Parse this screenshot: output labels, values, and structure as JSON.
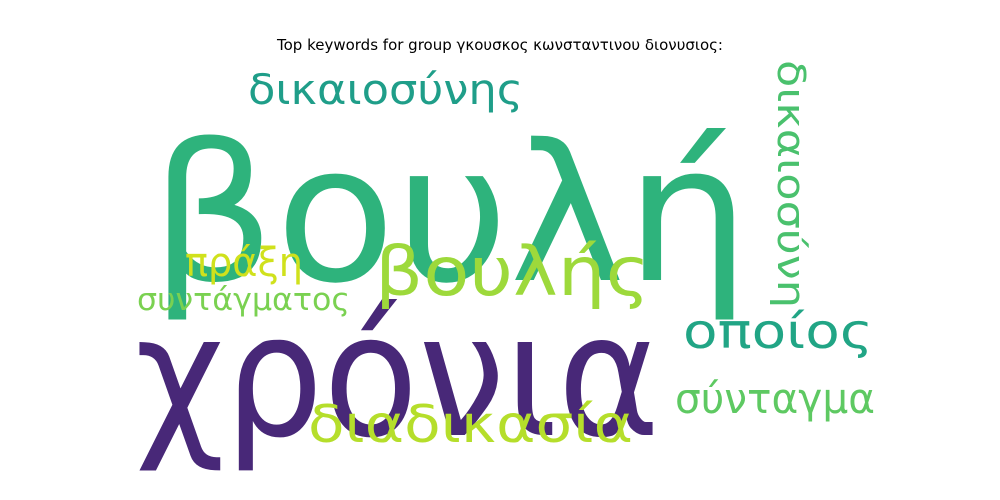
{
  "chart_data": {
    "type": "wordcloud",
    "title": "Top keywords for group γκουσκος κωνσταντινου διονυσιος:",
    "words": [
      {
        "text": "βουλή",
        "weight": 1.0,
        "color": "#2eb37c",
        "rotation": 0
      },
      {
        "text": "χρόνια",
        "weight": 0.9,
        "color": "#482878",
        "rotation": 0
      },
      {
        "text": "βουλής",
        "weight": 0.45,
        "color": "#9dd93b",
        "rotation": 0
      },
      {
        "text": "διαδικασία",
        "weight": 0.33,
        "color": "#b5de2b",
        "rotation": 0
      },
      {
        "text": "οποίος",
        "weight": 0.3,
        "color": "#21a585",
        "rotation": 0
      },
      {
        "text": "σύνταγμα",
        "weight": 0.27,
        "color": "#5ec962",
        "rotation": 0
      },
      {
        "text": "δικαιοσύνης",
        "weight": 0.26,
        "color": "#1f9e89",
        "rotation": 0
      },
      {
        "text": "δικαιοσύνη",
        "weight": 0.24,
        "color": "#4ac16d",
        "rotation": 90
      },
      {
        "text": "πράξη",
        "weight": 0.2,
        "color": "#d0e11c",
        "rotation": 0
      },
      {
        "text": "συντάγματος",
        "weight": 0.18,
        "color": "#7ad151",
        "rotation": 0
      }
    ]
  }
}
